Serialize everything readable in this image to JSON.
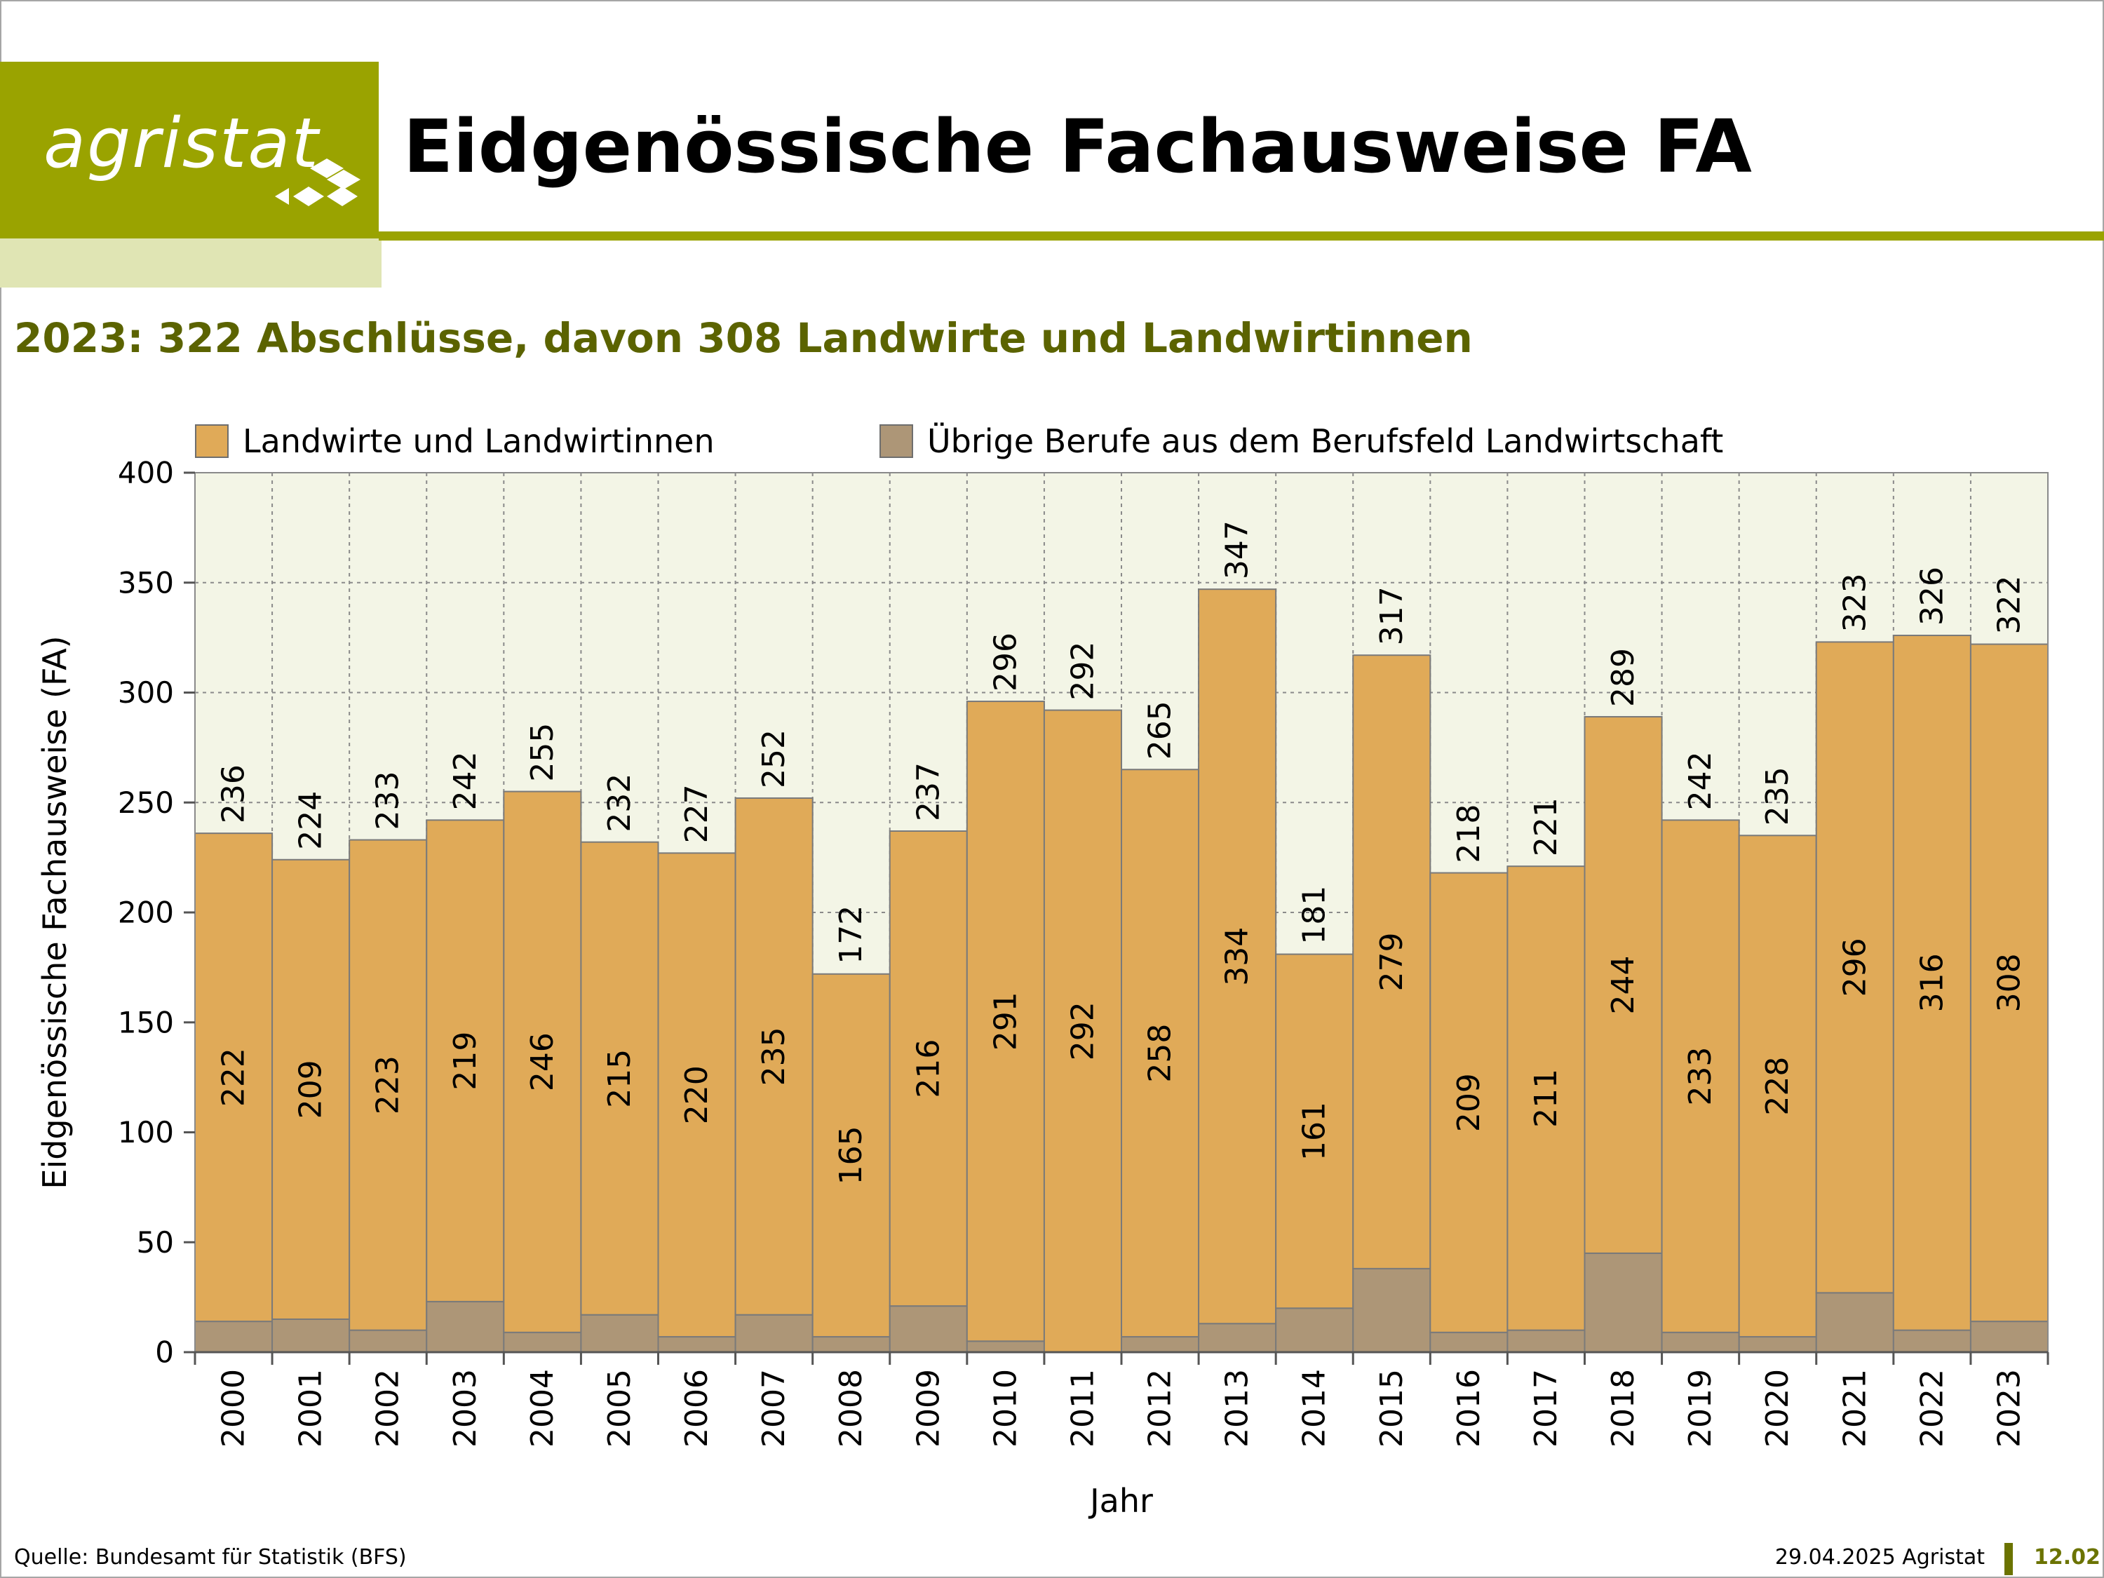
{
  "header": {
    "logo_text": "agristat",
    "title": "Eidgenössische Fachausweise FA"
  },
  "subtitle": "2023: 322 Abschlüsse, davon 308 Landwirte und Landwirtinnen",
  "footer": {
    "source": "Quelle: Bundesamt für Statistik (BFS)",
    "date": "29.04.2025 Agristat",
    "page": "12.02"
  },
  "colors": {
    "brand": "#9aa300",
    "brand_light": "#e0e5b4",
    "subtitle": "#5b6300",
    "plot_bg": "#f3f5e6",
    "landwirte": "#e0aa58",
    "uebrige": "#ad9677"
  },
  "chart_data": {
    "type": "bar",
    "stacked": true,
    "title": "",
    "xlabel": "Jahr",
    "ylabel": "Eidgenössische Fachausweise (FA)",
    "ylim": [
      0,
      400
    ],
    "yticks": [
      0,
      50,
      100,
      150,
      200,
      250,
      300,
      350,
      400
    ],
    "grid": true,
    "legend": "top",
    "categories": [
      "2000",
      "2001",
      "2002",
      "2003",
      "2004",
      "2005",
      "2006",
      "2007",
      "2008",
      "2009",
      "2010",
      "2011",
      "2012",
      "2013",
      "2014",
      "2015",
      "2016",
      "2017",
      "2018",
      "2019",
      "2020",
      "2021",
      "2022",
      "2023"
    ],
    "series": [
      {
        "name": "Übrige Berufe aus dem Berufsfeld Landwirtschaft",
        "values": [
          14,
          15,
          10,
          23,
          9,
          17,
          7,
          17,
          7,
          21,
          5,
          0,
          7,
          13,
          20,
          38,
          9,
          10,
          45,
          9,
          7,
          27,
          10,
          14
        ]
      },
      {
        "name": "Landwirte und Landwirtinnen",
        "values": [
          222,
          209,
          223,
          219,
          246,
          215,
          220,
          235,
          165,
          216,
          291,
          292,
          258,
          334,
          161,
          279,
          209,
          211,
          244,
          233,
          228,
          296,
          316,
          308
        ]
      }
    ],
    "totals": [
      236,
      224,
      233,
      242,
      255,
      232,
      227,
      252,
      172,
      237,
      296,
      292,
      265,
      347,
      181,
      317,
      218,
      221,
      289,
      242,
      235,
      323,
      326,
      322
    ]
  }
}
